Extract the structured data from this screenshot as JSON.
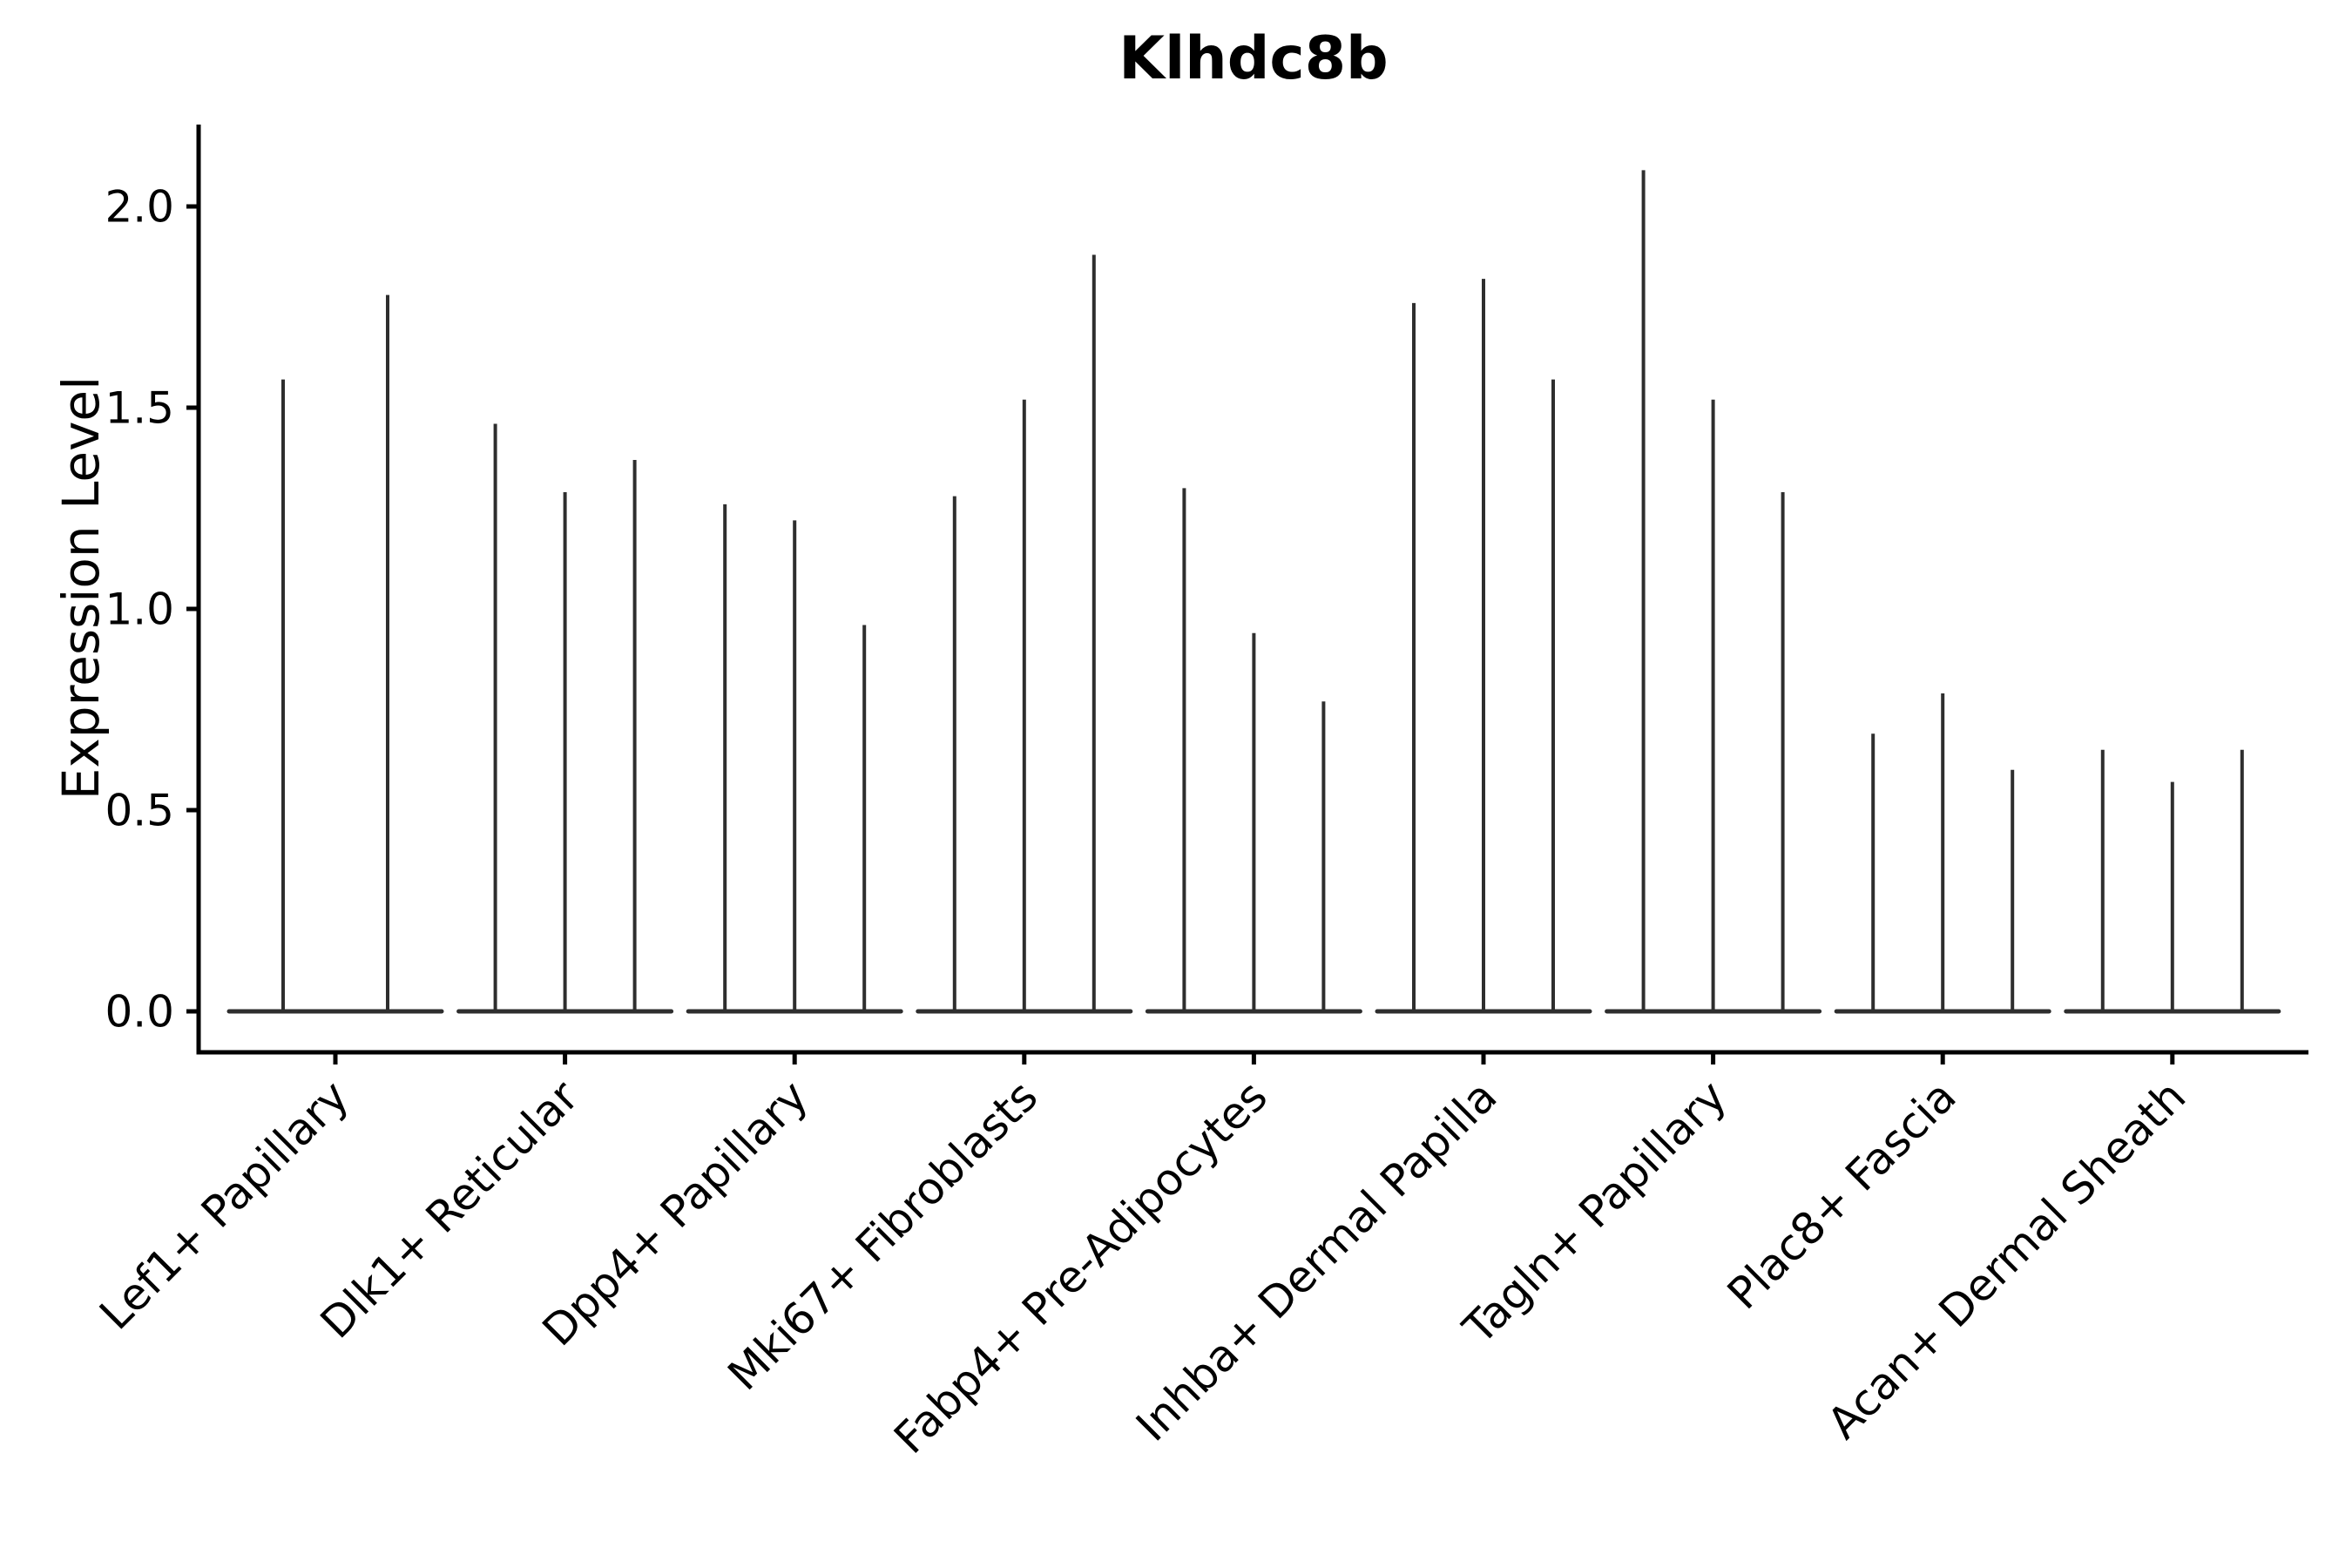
{
  "chart_data": {
    "type": "violin",
    "title": "Klhdc8b",
    "ylabel": "Expression Level",
    "xlabel": "",
    "ylim": [
      0.0,
      2.2
    ],
    "y_ticks": [
      "0.0",
      "0.5",
      "1.0",
      "1.5",
      "2.0"
    ],
    "grid": false,
    "legend": "none",
    "background": "#ffffff",
    "line_color": "#2e2e2e",
    "description": "Violin plot; each category holds 2-3 collapsed violins (flat base at 0 with a thin spike up to the max expression value).",
    "categories": [
      "Lef1+ Papillary",
      "Dlk1+ Reticular",
      "Dpp4+ Papillary",
      "Mki67+ Fibroblasts",
      "Fabp4+ Pre-Adipocytes",
      "Inhba+ Dermal Papilla",
      "Tagln+ Papillary",
      "Plac8+ Fascia",
      "Acan+ Dermal Sheath"
    ],
    "series": [
      {
        "category": "Lef1+ Papillary",
        "spike_max_values": [
          1.57,
          1.78
        ]
      },
      {
        "category": "Dlk1+ Reticular",
        "spike_max_values": [
          1.46,
          1.29,
          1.37
        ]
      },
      {
        "category": "Dpp4+ Papillary",
        "spike_max_values": [
          1.26,
          1.22,
          0.96
        ]
      },
      {
        "category": "Mki67+ Fibroblasts",
        "spike_max_values": [
          1.28,
          1.52,
          1.88
        ]
      },
      {
        "category": "Fabp4+ Pre-Adipocytes",
        "spike_max_values": [
          1.3,
          0.94,
          0.77
        ]
      },
      {
        "category": "Inhba+ Dermal Papilla",
        "spike_max_values": [
          1.76,
          1.82,
          1.57
        ]
      },
      {
        "category": "Tagln+ Papillary",
        "spike_max_values": [
          2.09,
          1.52,
          1.29
        ]
      },
      {
        "category": "Plac8+ Fascia",
        "spike_max_values": [
          0.69,
          0.79,
          0.6
        ]
      },
      {
        "category": "Acan+ Dermal Sheath",
        "spike_max_values": [
          0.65,
          0.57,
          0.65
        ]
      }
    ]
  }
}
